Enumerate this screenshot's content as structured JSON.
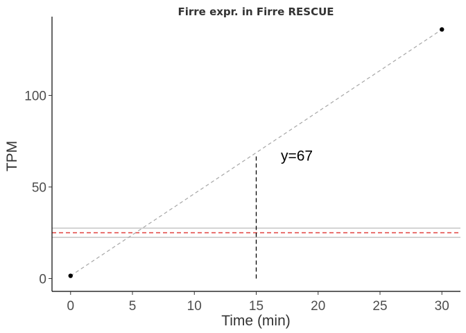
{
  "chart_data": {
    "type": "scatter",
    "title": "Firre expr. in Firre RESCUE",
    "xlabel": "Time (min)",
    "ylabel": "TPM",
    "xlim": [
      -1.5,
      31.5
    ],
    "ylim": [
      -7,
      143
    ],
    "xticks": [
      0,
      5,
      10,
      15,
      20,
      25,
      30
    ],
    "yticks": [
      0,
      50,
      100
    ],
    "grid": false,
    "points": [
      {
        "x": 0,
        "y": 1.5
      },
      {
        "x": 30,
        "y": 136
      }
    ],
    "fit_line": {
      "x": [
        0,
        30
      ],
      "y": [
        1.5,
        136
      ],
      "style": "dashed",
      "color": "#a6a6a6"
    },
    "reference_lines": [
      {
        "y": 22.5,
        "style": "solid",
        "color": "#a9a9a9"
      },
      {
        "y": 25,
        "style": "dashed",
        "color": "#e0403c"
      },
      {
        "y": 27.5,
        "style": "solid",
        "color": "#a9a9a9"
      }
    ],
    "vertical_marker": {
      "x": 15,
      "y_from": 0,
      "y_to": 67,
      "style": "dashed",
      "color": "#000000"
    },
    "annotation": {
      "text": "y=67",
      "x": 18,
      "y": 67
    }
  }
}
